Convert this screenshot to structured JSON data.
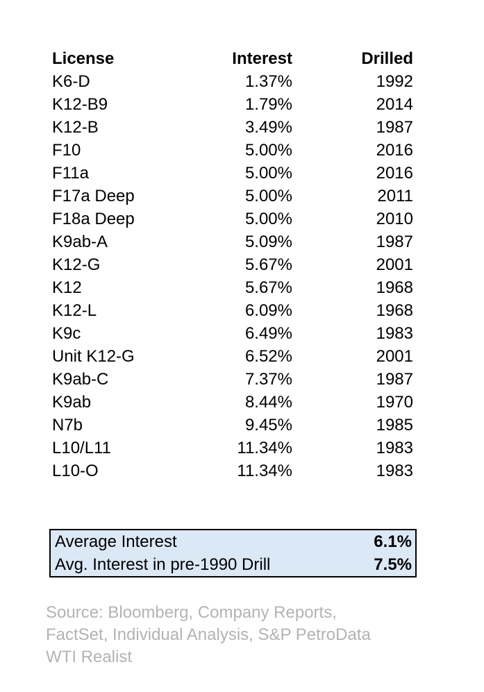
{
  "table": {
    "headers": {
      "license": "License",
      "interest": "Interest",
      "drilled": "Drilled"
    },
    "rows": [
      {
        "license": "K6-D",
        "interest": "1.37%",
        "drilled": "1992"
      },
      {
        "license": "K12-B9",
        "interest": "1.79%",
        "drilled": "2014"
      },
      {
        "license": "K12-B",
        "interest": "3.49%",
        "drilled": "1987"
      },
      {
        "license": "F10",
        "interest": "5.00%",
        "drilled": "2016"
      },
      {
        "license": "F11a",
        "interest": "5.00%",
        "drilled": "2016"
      },
      {
        "license": "F17a Deep",
        "interest": "5.00%",
        "drilled": "2011"
      },
      {
        "license": "F18a Deep",
        "interest": "5.00%",
        "drilled": "2010"
      },
      {
        "license": "K9ab-A",
        "interest": "5.09%",
        "drilled": "1987"
      },
      {
        "license": "K12-G",
        "interest": "5.67%",
        "drilled": "2001"
      },
      {
        "license": "K12",
        "interest": "5.67%",
        "drilled": "1968"
      },
      {
        "license": "K12-L",
        "interest": "6.09%",
        "drilled": "1968"
      },
      {
        "license": "K9c",
        "interest": "6.49%",
        "drilled": "1983"
      },
      {
        "license": "Unit K12-G",
        "interest": "6.52%",
        "drilled": "2001"
      },
      {
        "license": "K9ab-C",
        "interest": "7.37%",
        "drilled": "1987"
      },
      {
        "license": "K9ab",
        "interest": "8.44%",
        "drilled": "1970"
      },
      {
        "license": "N7b",
        "interest": "9.45%",
        "drilled": "1985"
      },
      {
        "license": "L10/L11",
        "interest": "11.34%",
        "drilled": "1983"
      },
      {
        "license": "L10-O",
        "interest": "11.34%",
        "drilled": "1983"
      }
    ]
  },
  "summary": {
    "background_color": "#dbe8f5",
    "border_color": "#000000",
    "rows": [
      {
        "label": "Average Interest",
        "value": "6.1%"
      },
      {
        "label": "Avg. Interest in pre-1990 Drill",
        "value": "7.5%"
      }
    ]
  },
  "source": {
    "text_color": "#b3b3b3",
    "lines": [
      "Source: Bloomberg, Company Reports,",
      "FactSet, Individual Analysis, S&P PetroData",
      "WTI Realist"
    ]
  }
}
